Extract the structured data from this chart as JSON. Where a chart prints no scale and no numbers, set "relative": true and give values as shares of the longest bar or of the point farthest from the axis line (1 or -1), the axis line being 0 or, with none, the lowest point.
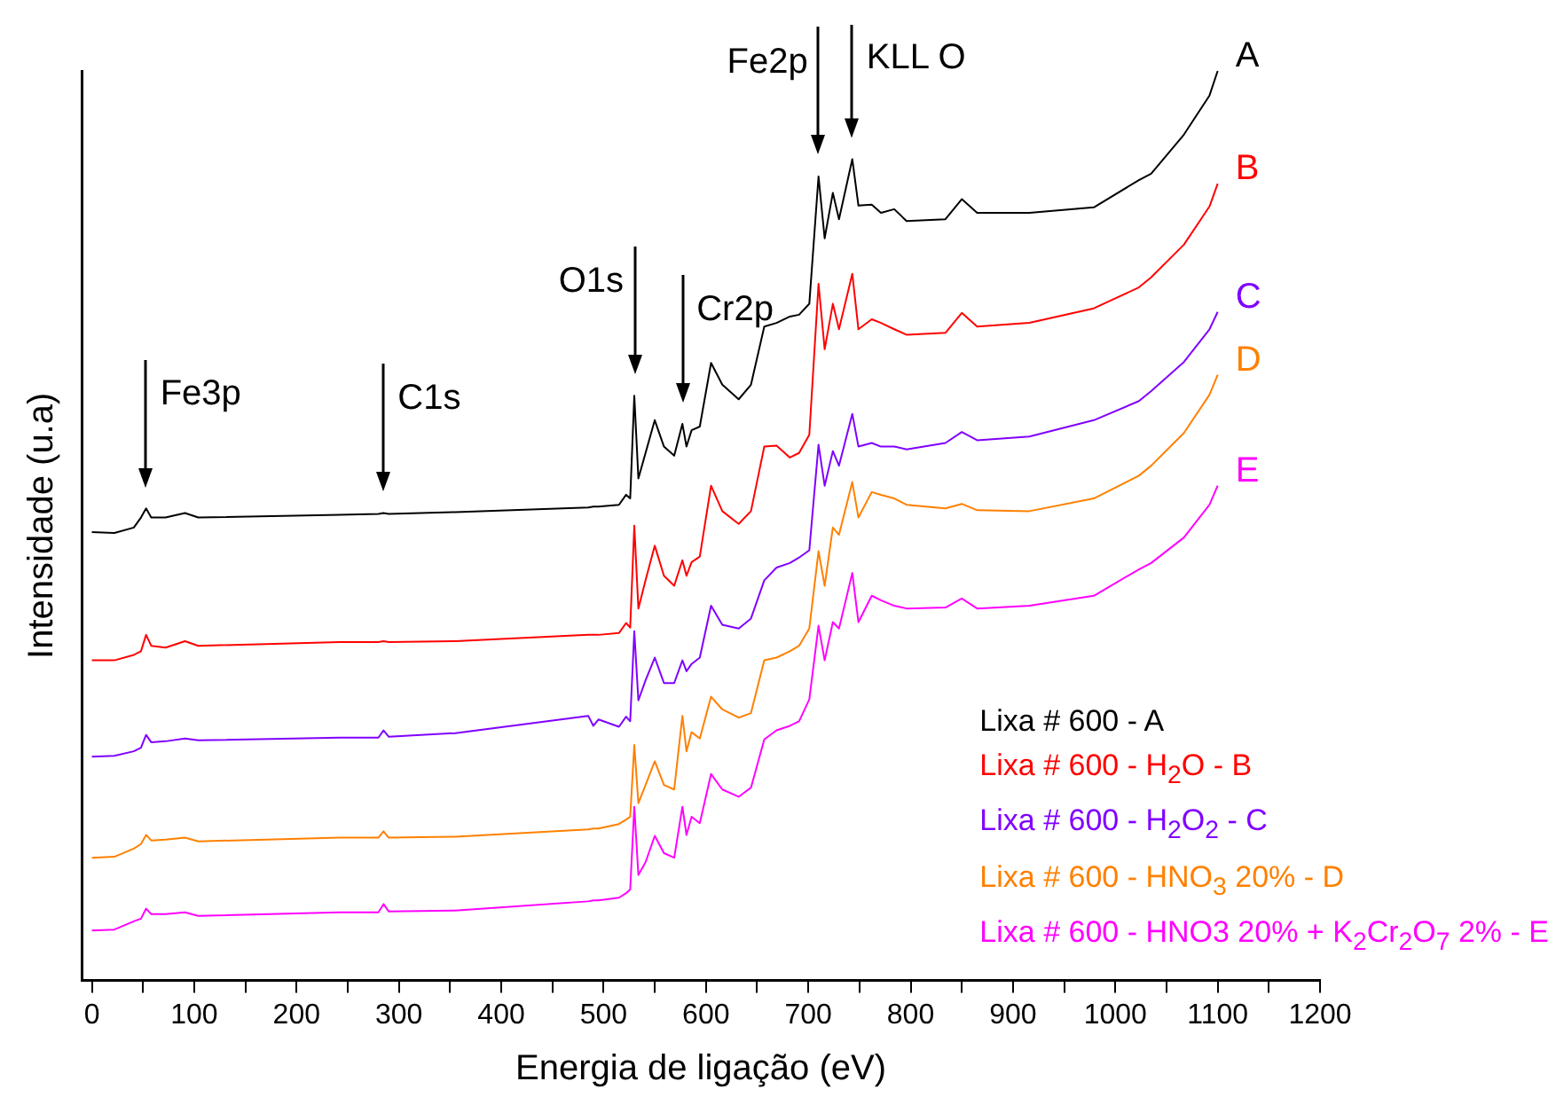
{
  "chart_data": {
    "type": "line",
    "xlabel": "Energia de ligação (eV)",
    "ylabel": "Intensidade (u.a)",
    "relative": true,
    "marker": "none",
    "legend": "bottom right",
    "xlim": [
      -10,
      1200
    ],
    "xticks": [
      0,
      {
        "value": 50,
        "label": null
      },
      100,
      {
        "value": 150,
        "label": null
      },
      200,
      {
        "value": 250,
        "label": null
      },
      300,
      {
        "value": 350,
        "label": null
      },
      400,
      {
        "value": 450,
        "label": null
      },
      500,
      {
        "value": 550,
        "label": null
      },
      600,
      {
        "value": 650,
        "label": null
      },
      700,
      {
        "value": 750,
        "label": null
      },
      800,
      {
        "value": 850,
        "label": null
      },
      900,
      {
        "value": 950,
        "label": null
      },
      1000,
      {
        "value": 1050,
        "label": null
      },
      1100,
      {
        "value": 1150,
        "label": null
      },
      1200
    ],
    "x": [
      0,
      22,
      41,
      48,
      53,
      58,
      72,
      91,
      104,
      242,
      280,
      285,
      290,
      355,
      485,
      490,
      495,
      515,
      522,
      526,
      530,
      534,
      541,
      550,
      559,
      569,
      577,
      581,
      586,
      594,
      605,
      616,
      632,
      644,
      657,
      669,
      682,
      691,
      701,
      710,
      716,
      724,
      730,
      743,
      749,
      762,
      771,
      784,
      796,
      834,
      850,
      865,
      916,
      979,
      1023,
      1035,
      1067,
      1092,
      1100
    ],
    "series": [
      {
        "name": "Lixa # 600 - A",
        "color": "#000000",
        "values": [
          0.493,
          0.492,
          0.498,
          0.509,
          0.519,
          0.509,
          0.509,
          0.514,
          0.509,
          0.512,
          0.513,
          0.514,
          0.513,
          0.515,
          0.52,
          0.521,
          0.521,
          0.523,
          0.534,
          0.53,
          0.643,
          0.552,
          0.58,
          0.616,
          0.587,
          0.577,
          0.612,
          0.587,
          0.605,
          0.609,
          0.679,
          0.655,
          0.639,
          0.655,
          0.719,
          0.723,
          0.73,
          0.732,
          0.744,
          0.884,
          0.816,
          0.866,
          0.837,
          0.903,
          0.852,
          0.853,
          0.844,
          0.848,
          0.835,
          0.837,
          0.859,
          0.844,
          0.844,
          0.85,
          0.88,
          0.887,
          0.93,
          0.973,
          1.0
        ]
      },
      {
        "name": "Lixa # 600 - H$_{2}$O - B",
        "color": "#ff0000",
        "values": [
          0.352,
          0.352,
          0.358,
          0.362,
          0.38,
          0.368,
          0.366,
          0.373,
          0.368,
          0.372,
          0.372,
          0.373,
          0.372,
          0.373,
          0.38,
          0.38,
          0.38,
          0.382,
          0.393,
          0.388,
          0.5,
          0.409,
          0.44,
          0.478,
          0.445,
          0.434,
          0.462,
          0.445,
          0.46,
          0.466,
          0.544,
          0.516,
          0.502,
          0.516,
          0.587,
          0.588,
          0.575,
          0.58,
          0.6,
          0.766,
          0.694,
          0.744,
          0.716,
          0.777,
          0.716,
          0.727,
          0.723,
          0.716,
          0.71,
          0.712,
          0.734,
          0.719,
          0.723,
          0.739,
          0.762,
          0.773,
          0.809,
          0.851,
          0.876
        ]
      },
      {
        "name": "Lixa # 600 - H$_{2}$O$_{2}$ - C",
        "color": "#8000ff",
        "values": [
          0.246,
          0.247,
          0.252,
          0.256,
          0.27,
          0.262,
          0.263,
          0.266,
          0.264,
          0.267,
          0.267,
          0.275,
          0.268,
          0.272,
          0.291,
          0.28,
          0.287,
          0.279,
          0.29,
          0.285,
          0.384,
          0.308,
          0.33,
          0.355,
          0.327,
          0.327,
          0.352,
          0.34,
          0.348,
          0.355,
          0.412,
          0.391,
          0.387,
          0.398,
          0.44,
          0.454,
          0.459,
          0.465,
          0.473,
          0.589,
          0.544,
          0.582,
          0.566,
          0.623,
          0.587,
          0.591,
          0.587,
          0.587,
          0.584,
          0.591,
          0.603,
          0.594,
          0.598,
          0.616,
          0.637,
          0.648,
          0.68,
          0.716,
          0.735
        ]
      },
      {
        "name": "Lixa # 600 - HNO$_{3}$ 20% - D",
        "color": "#ff8000",
        "values": [
          0.135,
          0.136,
          0.145,
          0.15,
          0.16,
          0.154,
          0.155,
          0.157,
          0.153,
          0.157,
          0.157,
          0.164,
          0.157,
          0.158,
          0.166,
          0.167,
          0.167,
          0.172,
          0.177,
          0.18,
          0.259,
          0.195,
          0.215,
          0.241,
          0.215,
          0.21,
          0.291,
          0.252,
          0.273,
          0.266,
          0.312,
          0.298,
          0.289,
          0.294,
          0.352,
          0.355,
          0.362,
          0.368,
          0.387,
          0.472,
          0.434,
          0.498,
          0.49,
          0.548,
          0.509,
          0.537,
          0.534,
          0.53,
          0.523,
          0.519,
          0.524,
          0.517,
          0.516,
          0.53,
          0.555,
          0.566,
          0.602,
          0.644,
          0.666
        ]
      },
      {
        "name": "Lixa # 600 - HNO3 20% + K$_{2}$Cr$_{2}$O$_{7}$ 2% - E",
        "color": "#ff00ff",
        "values": [
          0.055,
          0.056,
          0.065,
          0.068,
          0.079,
          0.073,
          0.073,
          0.075,
          0.071,
          0.075,
          0.075,
          0.084,
          0.076,
          0.077,
          0.087,
          0.088,
          0.088,
          0.091,
          0.096,
          0.1,
          0.191,
          0.116,
          0.13,
          0.159,
          0.14,
          0.135,
          0.191,
          0.16,
          0.18,
          0.173,
          0.227,
          0.21,
          0.202,
          0.212,
          0.265,
          0.275,
          0.28,
          0.285,
          0.309,
          0.39,
          0.352,
          0.394,
          0.387,
          0.448,
          0.394,
          0.423,
          0.418,
          0.412,
          0.409,
          0.41,
          0.42,
          0.409,
          0.412,
          0.423,
          0.452,
          0.459,
          0.487,
          0.523,
          0.544
        ]
      }
    ],
    "annotations": [
      {
        "text": "Fe3p",
        "x": 53,
        "y": 0.519
      },
      {
        "text": "C1s",
        "x": 285,
        "y": 0.514
      },
      {
        "text": "O1s",
        "x": 530,
        "y": 0.643
      },
      {
        "text": "Cr2p",
        "x": 577,
        "y": 0.612
      },
      {
        "text": "Fe2p",
        "x": 710,
        "y": 0.884
      },
      {
        "text": "KLL O",
        "x": 743,
        "y": 0.903
      },
      {
        "text": "A",
        "x": 1100,
        "y": 1.0
      },
      {
        "text": "B",
        "x": 1100,
        "y": 0.876
      },
      {
        "text": "C",
        "x": 1100,
        "y": 0.735
      },
      {
        "text": "D",
        "x": 1100,
        "y": 0.666
      },
      {
        "text": "E",
        "x": 1100,
        "y": 0.544
      }
    ]
  }
}
